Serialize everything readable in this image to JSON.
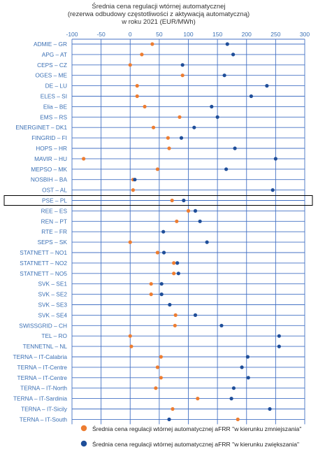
{
  "colors": {
    "down": "#ed7d31",
    "up": "#1f4e99",
    "grid": "#4472c4",
    "labels": "#3a6fb4",
    "highlight_box": "#000000"
  },
  "chart_data": {
    "type": "scatter",
    "title": [
      "Średnia cena regulacji wtórnej automatycznej",
      "(rezerwa odbudowy częstotliwości z aktywacją automatyczną)",
      "w roku 2021 (EUR/MWh)"
    ],
    "xlim": [
      -100,
      300
    ],
    "xticks": [
      "-100",
      "-50",
      "0",
      "50",
      "100",
      "150",
      "200",
      "250",
      "300"
    ],
    "xtick_values": [
      -100,
      -50,
      0,
      50,
      100,
      150,
      200,
      250,
      300
    ],
    "grid": true,
    "legend_position": "bottom",
    "highlighted_category": "PSE – PL",
    "categories": [
      "ADMIE – GR",
      "APG – AT",
      "CEPS – CZ",
      "OGES – ME",
      "DE – LU",
      "ELES – SI",
      "Elia – BE",
      "EMS – RS",
      "ENERGINET – DK1",
      "FINGRID – FI",
      "HOPS – HR",
      "MAVIR – HU",
      "MEPSO – MK",
      "NOSBIH – BA",
      "OST – AL",
      "PSE – PL",
      "REE – ES",
      "REN – PT",
      "RTE – FR",
      "SEPS – SK",
      "STATNETT – NO1",
      "STATNETT – NO2",
      "STATNETT – NO5",
      "SVK – SE1",
      "SVK – SE2",
      "SVK – SE3",
      "SVK – SE4",
      "SWISSGRID – CH",
      "TEL – RO",
      "TENNETNL – NL",
      "TERNA – IT-Calabria",
      "TERNA – IT-Centre",
      "TERNA – IT-Centre",
      "TERNA – IT-North",
      "TERNA – IT-Sardinia",
      "TERNA – IT-Sicily",
      "TERNA – IT-South"
    ],
    "series": [
      {
        "name": "Średnia cena regulacji wtórnej automatycznej aFRR \"w kierunku zmniejszania\"",
        "key": "down",
        "values": [
          38,
          20,
          0,
          90,
          12,
          12,
          25,
          85,
          40,
          65,
          67,
          -80,
          47,
          5,
          5,
          72,
          100,
          80,
          null,
          0,
          47,
          75,
          75,
          36,
          36,
          null,
          78,
          77,
          0,
          2,
          53,
          47,
          53,
          44,
          116,
          73,
          185
        ]
      },
      {
        "name": "Średnia cena regulacji wtórnej automatycznej aFRR \"w kierunku zwiększania\"",
        "key": "up",
        "values": [
          167,
          177,
          90,
          162,
          235,
          208,
          140,
          150,
          110,
          88,
          180,
          250,
          165,
          8,
          245,
          92,
          112,
          120,
          57,
          132,
          58,
          81,
          83,
          54,
          54,
          68,
          112,
          157,
          256,
          256,
          202,
          192,
          203,
          178,
          174,
          240,
          67
        ]
      }
    ]
  }
}
